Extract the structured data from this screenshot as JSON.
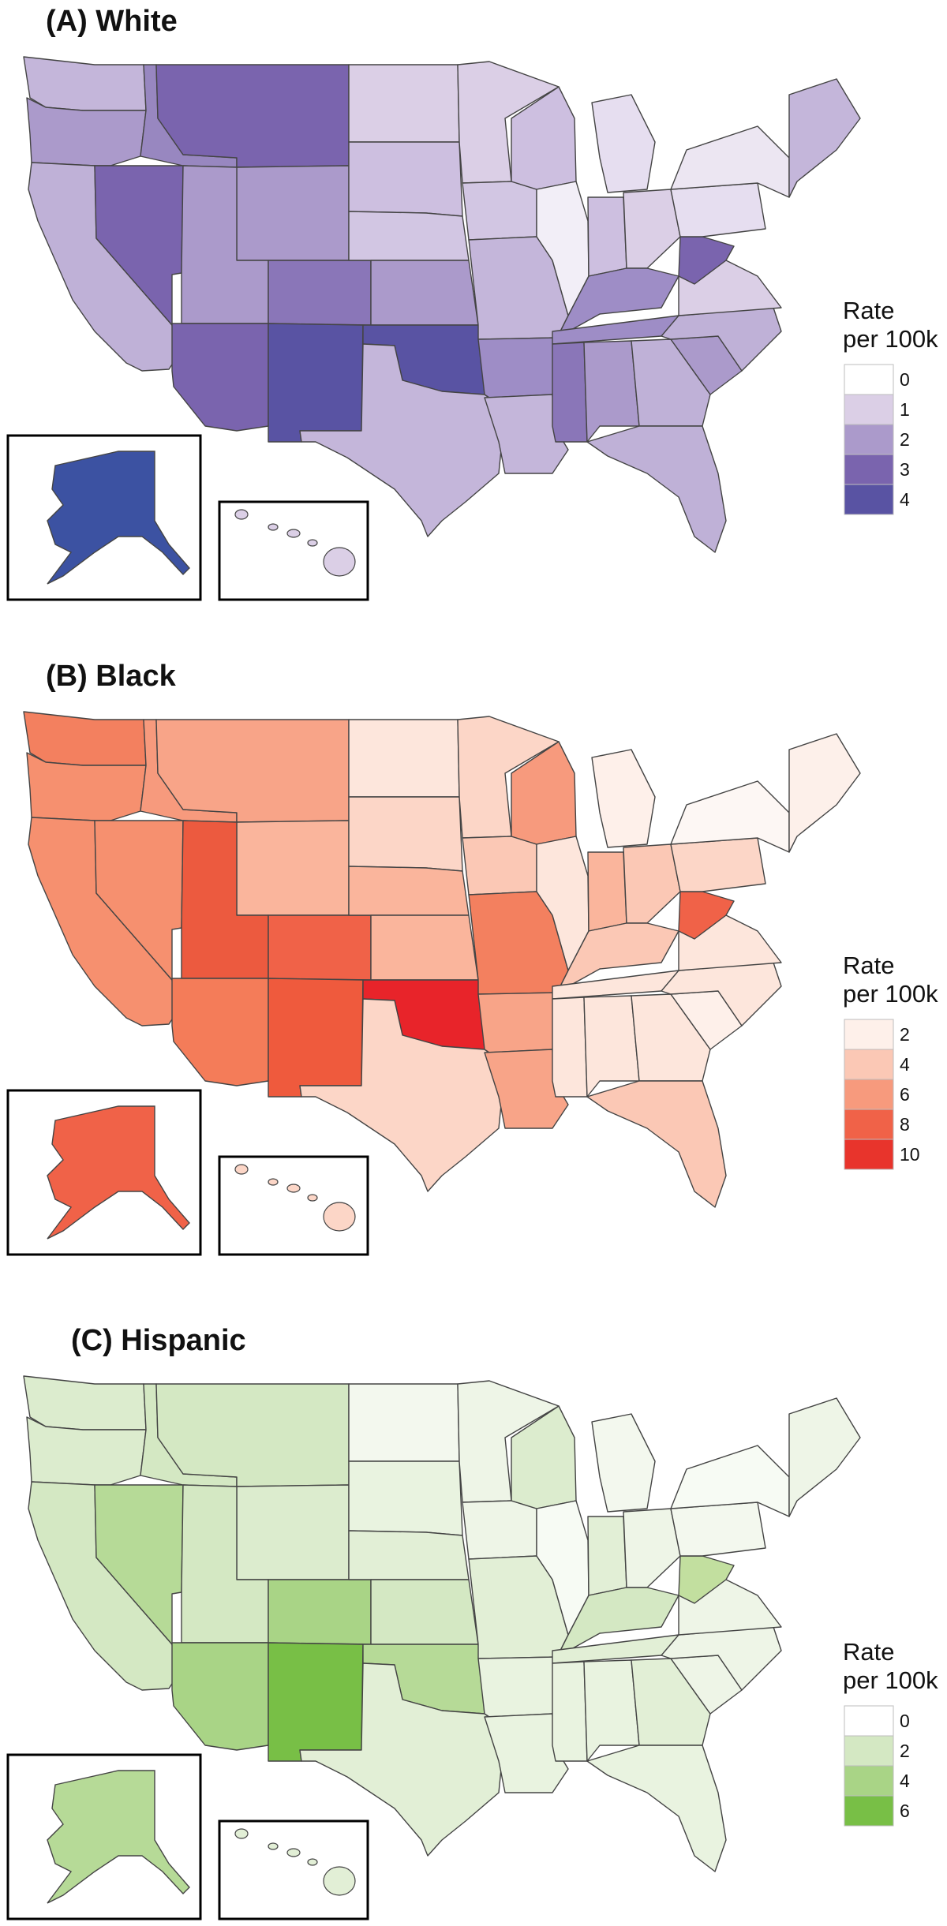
{
  "panels": [
    {
      "title": "(A) White",
      "legend": {
        "title": "Rate\nper 100k",
        "entries": [
          {
            "label": "0",
            "color": "#ffffff"
          },
          {
            "label": "1",
            "color": "#dbcfe6"
          },
          {
            "label": "2",
            "color": "#ab9acb"
          },
          {
            "label": "3",
            "color": "#7a64ae"
          },
          {
            "label": "4",
            "color": "#5953a3"
          }
        ]
      },
      "state_colors": {
        "WA": "#c4b6da",
        "OR": "#ab9acb",
        "CA": "#bfb1d7",
        "NV": "#7a64ae",
        "ID": "#9887c0",
        "MT": "#7a64ae",
        "WY": "#ab9acb",
        "UT": "#ab9acb",
        "AZ": "#7a64ae",
        "CO": "#8a76b8",
        "NM": "#5953a3",
        "ND": "#dbcfe6",
        "SD": "#cdbfe0",
        "NE": "#d2c6e3",
        "KS": "#ab9acb",
        "OK": "#5953a3",
        "TX": "#c4b6da",
        "MN": "#dbcfe6",
        "IA": "#d2c6e3",
        "MO": "#c4b6da",
        "AR": "#9e8dc6",
        "LA": "#c4b6da",
        "WI": "#cdbfe0",
        "IL": "#f2eef7",
        "MI": "#e6def0",
        "IN": "#cdbfe0",
        "OH": "#dbcfe6",
        "KY": "#9e8dc6",
        "TN": "#9e8dc6",
        "MS": "#8a76b8",
        "AL": "#ab9acb",
        "GA": "#bfb1d7",
        "FL": "#bfb1d7",
        "SC": "#ab9acb",
        "NC": "#bfb1d7",
        "VA": "#dbcfe6",
        "WV": "#7a64ae",
        "PA": "#e6def0",
        "NY": "#ece6f2",
        "NE_US": "#c4b6da",
        "AK": "#3c52a2",
        "HI": "#dbcfe6"
      }
    },
    {
      "title": "(B) Black",
      "legend": {
        "title": "Rate\nper 100k",
        "entries": [
          {
            "label": "2",
            "color": "#fef0ea"
          },
          {
            "label": "4",
            "color": "#fbc8b5"
          },
          {
            "label": "6",
            "color": "#f79a7d"
          },
          {
            "label": "8",
            "color": "#f06248"
          },
          {
            "label": "10",
            "color": "#e8342c"
          }
        ]
      },
      "state_colors": {
        "WA": "#f3805f",
        "OR": "#f6906f",
        "CA": "#f6906f",
        "NV": "#f6906f",
        "ID": "#f79a7d",
        "MT": "#f8a488",
        "WY": "#fab59c",
        "UT": "#ec5a3f",
        "AZ": "#f47c59",
        "CO": "#f06248",
        "NM": "#ef5a3d",
        "ND": "#fde6dc",
        "SD": "#fcd6c7",
        "NE": "#fab59c",
        "KS": "#fab59c",
        "OK": "#e8242a",
        "TX": "#fcd6c7",
        "MN": "#fcd6c7",
        "IA": "#fbc8b5",
        "MO": "#f3805f",
        "AR": "#f8a488",
        "LA": "#f8a488",
        "WI": "#f79a7d",
        "IL": "#fde6dc",
        "MI": "#fef0ea",
        "IN": "#fab59c",
        "OH": "#fbc8b5",
        "KY": "#fbc8b5",
        "TN": "#fde6dc",
        "MS": "#fde6dc",
        "AL": "#fde6dc",
        "GA": "#fde6dc",
        "FL": "#fbc8b5",
        "SC": "#fef0ea",
        "NC": "#fde6dc",
        "VA": "#fde6dc",
        "WV": "#f06248",
        "PA": "#fcd6c7",
        "NY": "#fdf7f4",
        "NE_US": "#fdf0ea",
        "AK": "#f06248",
        "HI": "#fcd6c7"
      }
    },
    {
      "title": "(C) Hispanic",
      "legend": {
        "title": "Rate\nper 100k",
        "entries": [
          {
            "label": "0",
            "color": "#ffffff"
          },
          {
            "label": "2",
            "color": "#d4e8c3"
          },
          {
            "label": "4",
            "color": "#a9d486"
          },
          {
            "label": "6",
            "color": "#78bf46"
          }
        ]
      },
      "state_colors": {
        "WA": "#dcecce",
        "OR": "#dcecce",
        "CA": "#d4e8c3",
        "NV": "#b6da97",
        "ID": "#d4e8c3",
        "MT": "#d4e8c3",
        "WY": "#dcecce",
        "UT": "#d4e8c3",
        "AZ": "#a9d486",
        "CO": "#a9d486",
        "NM": "#78bf46",
        "ND": "#f3f8ee",
        "SD": "#e9f3e0",
        "NE": "#e2efd6",
        "KS": "#d4e8c3",
        "OK": "#b6da97",
        "TX": "#e2efd6",
        "MN": "#eef5e7",
        "IA": "#eef5e7",
        "MO": "#e2efd6",
        "AR": "#e9f3e0",
        "LA": "#e9f3e0",
        "WI": "#dcecce",
        "IL": "#f7fbf4",
        "MI": "#f3f8ee",
        "IN": "#e2efd6",
        "OH": "#eef5e7",
        "KY": "#d4e8c3",
        "TN": "#e2efd6",
        "MS": "#e9f3e0",
        "AL": "#e9f3e0",
        "GA": "#e2efd6",
        "FL": "#e9f3e0",
        "SC": "#eef5e7",
        "NC": "#eef5e7",
        "VA": "#eef5e7",
        "WV": "#c2df9f",
        "PA": "#f3f8ee",
        "NY": "#f7fbf4",
        "NE_US": "#eef5e7",
        "AK": "#b6da97",
        "HI": "#e2efd6"
      }
    }
  ]
}
